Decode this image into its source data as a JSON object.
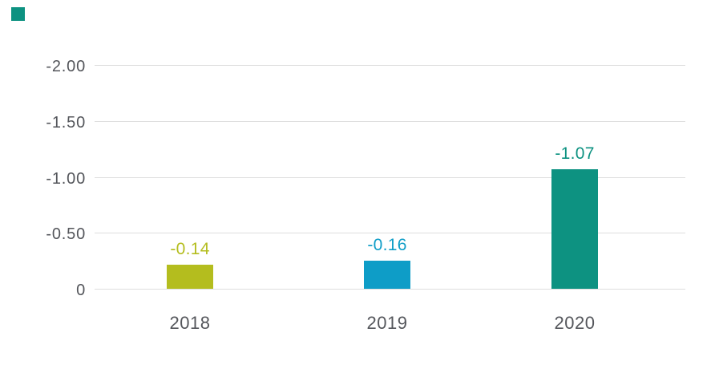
{
  "chart_data": {
    "type": "bar",
    "title": "",
    "categories": [
      "2018",
      "2019",
      "2020"
    ],
    "values": [
      -0.14,
      -0.16,
      -1.07
    ],
    "value_labels": [
      "-0.14",
      "-0.16",
      "-1.07"
    ],
    "series_colors": [
      "#b4bd1e",
      "#0e9dc7",
      "#0d9281"
    ],
    "y_ticks": [
      "-2.00",
      "-1.50",
      "-1.00",
      "-0.50",
      "0"
    ],
    "y_axis": {
      "min": 0,
      "max": -2.0,
      "inverted": true,
      "tick_step": 0.5
    },
    "grid": true,
    "legend_position": "top-left",
    "legend_marker_color": "#0d9281",
    "colors": {
      "axis_text": "#54565b",
      "gridline": "#dedede",
      "background": "#ffffff"
    },
    "rendered_bar_units": [
      0.215,
      0.25,
      1.065
    ]
  }
}
